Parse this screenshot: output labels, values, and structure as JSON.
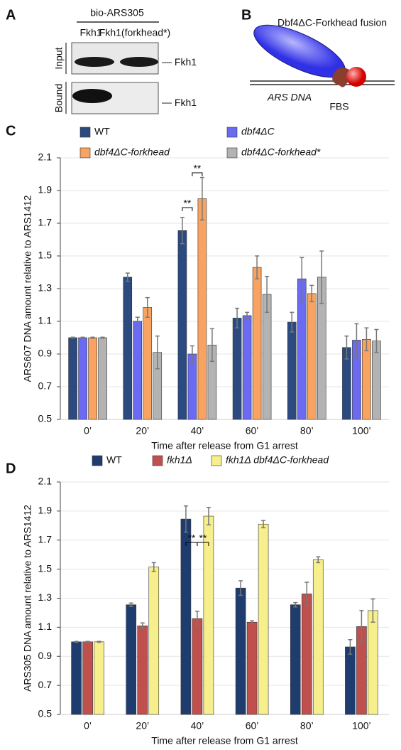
{
  "panel_a": {
    "letter": "A",
    "header": "bio-ARS305",
    "columns": [
      "Fkh1",
      "Fkh1(forkhead*)"
    ],
    "rows": [
      "Input",
      "Bound"
    ],
    "band_labels": [
      "Fkh1",
      "Fkh1"
    ]
  },
  "panel_b": {
    "letter": "B",
    "title": "Dbf4ΔC-Forkhead fusion",
    "dna_label": "ARS DNA",
    "site_label": "FBS"
  },
  "chart_data": [
    {
      "type": "bar",
      "panel": "C",
      "x_label": "Time after release from G1 arrest",
      "y_label": "ARS607 DNA amount relative to ARS1412",
      "categories": [
        "0’",
        "20’",
        "40’",
        "60’",
        "80’",
        "100’"
      ],
      "series": [
        {
          "name": "WT",
          "color": "#2b4a80",
          "values": [
            1.0,
            1.37,
            1.655,
            1.12,
            1.095,
            0.94
          ],
          "errors": [
            0.003,
            0.025,
            0.08,
            0.06,
            0.06,
            0.07
          ]
        },
        {
          "name": "dbf4ΔC",
          "color": "#6a6af2",
          "values": [
            1.0,
            1.1,
            0.9,
            1.135,
            1.36,
            0.985
          ],
          "errors": [
            0.003,
            0.025,
            0.05,
            0.02,
            0.13,
            0.1
          ]
        },
        {
          "name": "dbf4ΔC-forkhead",
          "color": "#f8a361",
          "values": [
            1.0,
            1.185,
            1.85,
            1.43,
            1.27,
            0.99
          ],
          "errors": [
            0.003,
            0.06,
            0.13,
            0.07,
            0.05,
            0.07
          ]
        },
        {
          "name": "dbf4ΔC-forkhead*",
          "color": "#b3b3b3",
          "values": [
            1.0,
            0.91,
            0.955,
            1.265,
            1.37,
            0.98
          ],
          "errors": [
            0.003,
            0.1,
            0.1,
            0.11,
            0.16,
            0.07
          ]
        }
      ],
      "ylim": [
        0.5,
        2.1
      ],
      "yticks": [
        0.5,
        0.7,
        0.9,
        1.1,
        1.3,
        1.5,
        1.7,
        1.9,
        2.1
      ],
      "grid": true,
      "annotations": [
        "**",
        "**"
      ]
    },
    {
      "type": "bar",
      "panel": "D",
      "x_label": "Time after release from G1 arrest",
      "y_label": "ARS305 DNA amount relative to ARS1412",
      "categories": [
        "0’",
        "20’",
        "40’",
        "60’",
        "80’",
        "100’"
      ],
      "series": [
        {
          "name": "WT",
          "color": "#1f3c6e",
          "values": [
            1.0,
            1.255,
            1.845,
            1.37,
            1.255,
            0.965
          ],
          "errors": [
            0.003,
            0.012,
            0.09,
            0.05,
            0.015,
            0.05
          ]
        },
        {
          "name": "fkh1Δ",
          "color": "#c0504d",
          "values": [
            1.0,
            1.11,
            1.16,
            1.135,
            1.33,
            1.105
          ],
          "errors": [
            0.003,
            0.02,
            0.05,
            0.01,
            0.08,
            0.11
          ]
        },
        {
          "name": "fkh1Δ dbf4ΔC-forkhead",
          "color": "#f6ef8c",
          "values": [
            1.0,
            1.515,
            1.865,
            1.81,
            1.565,
            1.215
          ],
          "errors": [
            0.003,
            0.03,
            0.06,
            0.025,
            0.02,
            0.08
          ]
        }
      ],
      "ylim": [
        0.5,
        2.1
      ],
      "yticks": [
        0.5,
        0.7,
        0.9,
        1.1,
        1.3,
        1.5,
        1.7,
        1.9,
        2.1
      ],
      "grid": true,
      "annotations": [
        "**",
        "**"
      ]
    }
  ]
}
